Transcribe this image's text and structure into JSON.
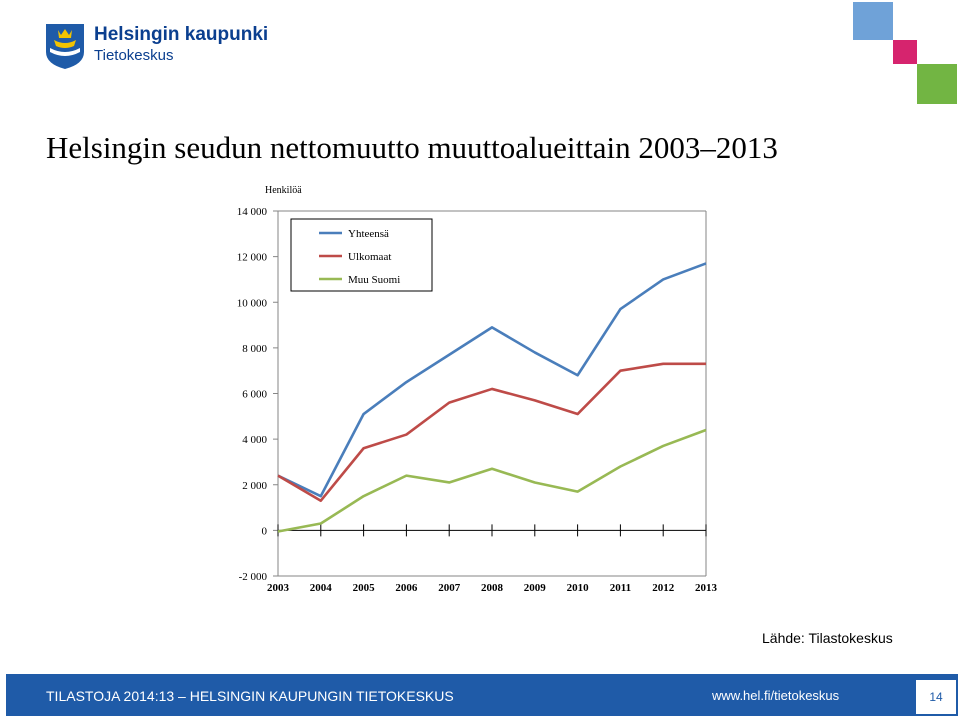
{
  "header": {
    "logo_line1": "Helsingin kaupunki",
    "logo_line2": "Tietokeskus"
  },
  "slide": {
    "title": "Helsingin seudun nettomuutto muuttoalueittain 2003–2013",
    "source": "Lähde: Tilastokeskus"
  },
  "footer": {
    "left_text": "TILASTOJA 2014:13 – HELSINGIN KAUPUNGIN TIETOKESKUS",
    "url": "www.hel.fi/tietokeskus",
    "page_number": "14"
  },
  "colors": {
    "brand_blue": "#1f5ba8",
    "square_light_blue": "#6fa2d8",
    "square_magenta": "#d6246e",
    "square_green": "#72b543"
  },
  "chart_data": {
    "type": "line",
    "unit_label": "Henkilöä",
    "x": [
      "2003",
      "2004",
      "2005",
      "2006",
      "2007",
      "2008",
      "2009",
      "2010",
      "2011",
      "2012",
      "2013"
    ],
    "ylim": [
      -2000,
      14000
    ],
    "yticks": [
      -2000,
      0,
      2000,
      4000,
      6000,
      8000,
      10000,
      12000,
      14000
    ],
    "ytick_labels": [
      "-2 000",
      "0",
      "2 000",
      "4 000",
      "6 000",
      "8 000",
      "10 000",
      "12 000",
      "14 000"
    ],
    "grid": false,
    "legend_position": "top-left",
    "series": [
      {
        "name": "Yhteensä",
        "color": "#4a7ebb",
        "values": [
          2400,
          1500,
          5100,
          6500,
          7700,
          8900,
          7800,
          6800,
          9700,
          11000,
          11700
        ]
      },
      {
        "name": "Ulkomaat",
        "color": "#be4b48",
        "values": [
          2400,
          1300,
          3600,
          4200,
          5600,
          6200,
          5700,
          5100,
          7000,
          7300,
          7300
        ]
      },
      {
        "name": "Muu Suomi",
        "color": "#98b954",
        "values": [
          -50,
          300,
          1500,
          2400,
          2100,
          2700,
          2100,
          1700,
          2800,
          3700,
          4400
        ]
      }
    ]
  }
}
